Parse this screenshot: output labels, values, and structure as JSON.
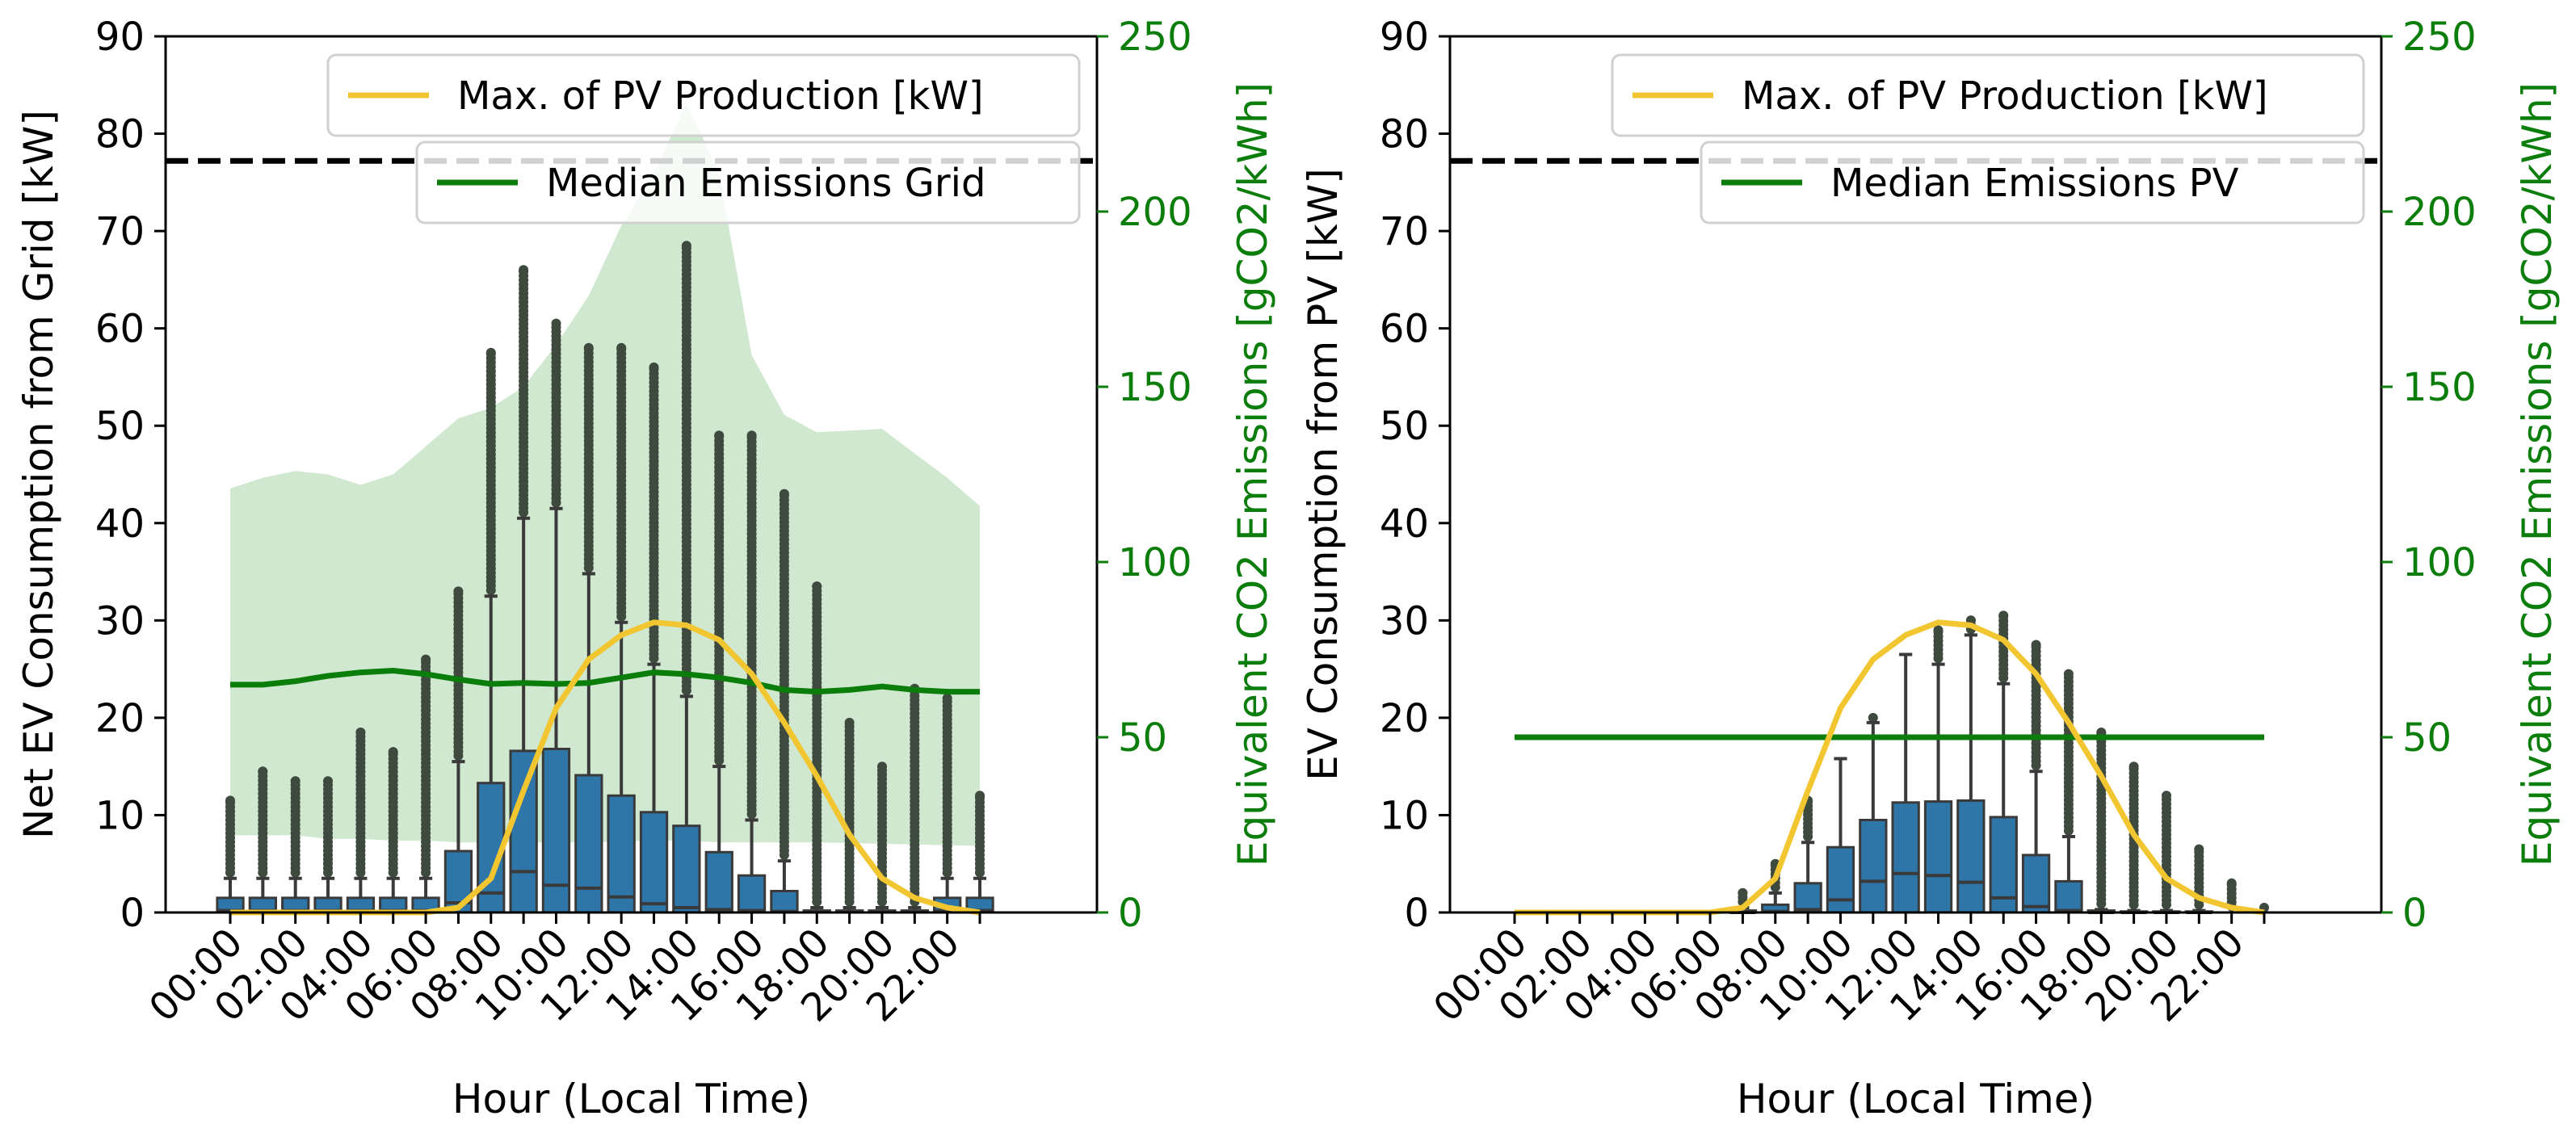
{
  "colors": {
    "bar": "#2e75a8",
    "bar_edge": "#3a3a3a",
    "whisker": "#3a3a3a",
    "flier": "#3f4a3f",
    "pv_line": "#f2c630",
    "emission": "#0a7d0a",
    "emission_band": "#cfe8cf",
    "threshold": "#000000",
    "axis": "#000000"
  },
  "chart_data": [
    {
      "type": "bar",
      "title": "",
      "xlabel": "Hour (Local Time)",
      "ylabel": "Net EV Consumption from Grid [kW]",
      "y2label": "Equivalent CO2 Emissions [gCO2/kWh]",
      "ylim": [
        0,
        90
      ],
      "y2lim": [
        0,
        250
      ],
      "yticks": [
        "0",
        "10",
        "20",
        "30",
        "40",
        "50",
        "60",
        "70",
        "80",
        "90"
      ],
      "y2ticks": [
        "0",
        "50",
        "100",
        "150",
        "200",
        "250"
      ],
      "xticks": [
        "00:00",
        "02:00",
        "04:00",
        "06:00",
        "08:00",
        "10:00",
        "12:00",
        "14:00",
        "16:00",
        "18:00",
        "20:00",
        "22:00"
      ],
      "threshold": 77.2,
      "legend": [
        {
          "label": "Max. of PV Production [kW]",
          "kind": "pv"
        },
        {
          "label": "Median Emissions Grid",
          "kind": "emission"
        }
      ],
      "hours": [
        0,
        1,
        2,
        3,
        4,
        5,
        6,
        7,
        8,
        9,
        10,
        11,
        12,
        13,
        14,
        15,
        16,
        17,
        18,
        19,
        20,
        21,
        22,
        23
      ],
      "boxes": {
        "q3": [
          1.5,
          1.5,
          1.5,
          1.5,
          1.5,
          1.5,
          1.5,
          6.3,
          13.3,
          16.6,
          16.8,
          14.1,
          12.0,
          10.3,
          8.9,
          6.2,
          3.8,
          2.2,
          0.2,
          0.2,
          0.2,
          0.2,
          1.5,
          1.5
        ],
        "median": [
          0.2,
          0.2,
          0.2,
          0.2,
          0.2,
          0.2,
          0.2,
          1.0,
          2.0,
          4.2,
          2.8,
          2.5,
          1.6,
          0.9,
          0.5,
          0.3,
          0.2,
          0.1,
          0.1,
          0.1,
          0.1,
          0.1,
          0.2,
          0.2
        ],
        "whisker_top": [
          3.5,
          3.5,
          3.5,
          3.5,
          3.5,
          3.5,
          3.5,
          15.5,
          32.5,
          40.5,
          41.5,
          34.8,
          29.8,
          25.5,
          22.2,
          15.0,
          9.5,
          5.3,
          0.5,
          0.5,
          0.5,
          0.5,
          3.5,
          3.5
        ],
        "flier_max": [
          11.5,
          14.5,
          13.5,
          13.5,
          18.5,
          16.5,
          26.0,
          33.0,
          57.5,
          66.0,
          60.5,
          58.0,
          58.0,
          56.0,
          68.5,
          49.0,
          49.0,
          43.0,
          33.5,
          19.5,
          15.0,
          23.0,
          22.0,
          12.0
        ]
      },
      "pv_max": [
        0,
        0,
        0,
        0,
        0,
        0,
        0,
        0.5,
        3.5,
        12.5,
        21.0,
        26.0,
        28.5,
        29.8,
        29.5,
        28.0,
        24.5,
        19.5,
        14.0,
        8.0,
        3.5,
        1.5,
        0.5,
        0
      ],
      "emission_median": [
        65,
        65,
        66,
        67.5,
        68.5,
        69,
        68,
        66.5,
        65.2,
        65.5,
        65.2,
        65.5,
        67,
        68.5,
        68,
        67,
        65.5,
        63.5,
        63,
        63.5,
        64.5,
        63.5,
        63,
        63
      ],
      "emission_low": [
        22,
        22,
        22,
        21,
        21,
        20.5,
        20.5,
        20,
        20,
        20,
        20,
        20,
        20.3,
        20.5,
        20.5,
        20,
        20,
        20,
        20,
        19.8,
        19.6,
        19.4,
        19.2,
        19
      ],
      "emission_high": [
        121,
        124,
        126,
        125,
        122,
        125,
        133,
        141,
        144,
        150,
        162,
        176,
        196,
        211,
        231,
        211,
        159,
        142,
        137,
        137.5,
        138,
        131,
        124,
        116
      ]
    },
    {
      "type": "bar",
      "title": "",
      "xlabel": "Hour (Local Time)",
      "ylabel": "EV Consumption from PV [kW]",
      "y2label": "Equivalent CO2 Emissions [gCO2/kWh]",
      "ylim": [
        0,
        90
      ],
      "y2lim": [
        0,
        250
      ],
      "yticks": [
        "0",
        "10",
        "20",
        "30",
        "40",
        "50",
        "60",
        "70",
        "80",
        "90"
      ],
      "y2ticks": [
        "0",
        "50",
        "100",
        "150",
        "200",
        "250"
      ],
      "xticks": [
        "00:00",
        "02:00",
        "04:00",
        "06:00",
        "08:00",
        "10:00",
        "12:00",
        "14:00",
        "16:00",
        "18:00",
        "20:00",
        "22:00"
      ],
      "threshold": 77.2,
      "legend": [
        {
          "label": "Max. of PV Production [kW]",
          "kind": "pv"
        },
        {
          "label": "Median Emissions PV",
          "kind": "emission"
        }
      ],
      "hours": [
        0,
        1,
        2,
        3,
        4,
        5,
        6,
        7,
        8,
        9,
        10,
        11,
        12,
        13,
        14,
        15,
        16,
        17,
        18,
        19,
        20,
        21,
        22,
        23
      ],
      "boxes": {
        "q3": [
          0,
          0,
          0,
          0,
          0,
          0,
          0,
          0.2,
          0.8,
          3.0,
          6.7,
          9.5,
          11.3,
          11.4,
          11.5,
          9.8,
          5.9,
          3.2,
          0.2,
          0.1,
          0.1,
          0.1,
          0,
          0
        ],
        "median": [
          0,
          0,
          0,
          0,
          0,
          0,
          0,
          0,
          0.1,
          0.3,
          1.3,
          3.2,
          4.0,
          3.8,
          3.1,
          1.5,
          0.6,
          0.2,
          0,
          0,
          0,
          0,
          0,
          0
        ],
        "whisker_top": [
          0,
          0,
          0,
          0,
          0,
          0,
          0,
          0.5,
          2.0,
          7.2,
          15.8,
          19.5,
          26.5,
          25.5,
          28.5,
          23.5,
          14.5,
          7.8,
          0.3,
          0.2,
          0.2,
          0.2,
          0,
          0
        ],
        "flier_max": [
          0,
          0,
          0,
          0,
          0,
          0,
          0,
          2.0,
          5.0,
          11.5,
          16.0,
          20.0,
          26.8,
          29.0,
          30.0,
          30.5,
          27.5,
          24.5,
          18.5,
          15.0,
          12.0,
          6.5,
          3.0,
          0.5
        ]
      },
      "pv_max": [
        0,
        0,
        0,
        0,
        0,
        0,
        0,
        0.5,
        3.5,
        12.5,
        21.0,
        26.0,
        28.5,
        29.8,
        29.5,
        28.0,
        24.5,
        19.5,
        14.0,
        8.0,
        3.5,
        1.5,
        0.5,
        0
      ],
      "emission_median": [
        50,
        50,
        50,
        50,
        50,
        50,
        50,
        50,
        50,
        50,
        50,
        50,
        50,
        50,
        50,
        50,
        50,
        50,
        50,
        50,
        50,
        50,
        50,
        50
      ]
    }
  ]
}
